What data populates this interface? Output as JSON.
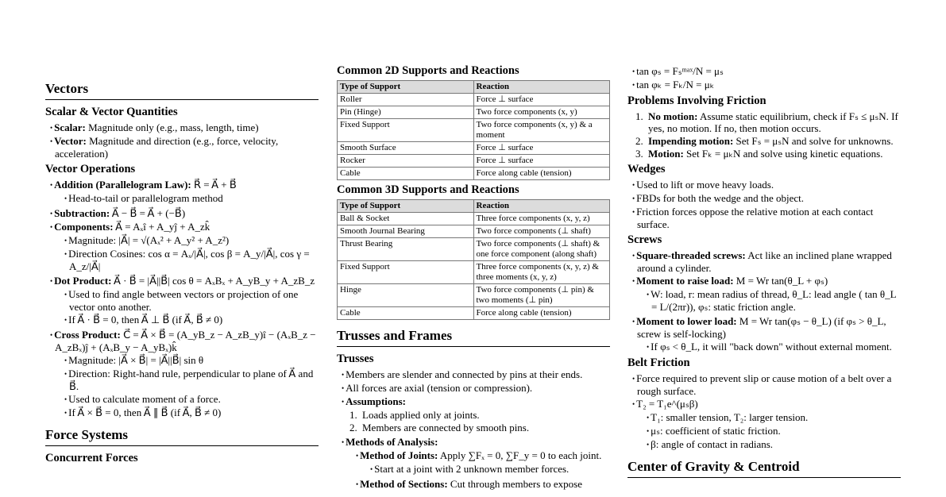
{
  "columns": [
    [
      {
        "type": "h2",
        "text": "Vectors"
      },
      {
        "type": "h3",
        "text": "Scalar & Vector Quantities"
      },
      {
        "type": "ul",
        "items": [
          {
            "b": "Scalar:",
            "t": " Magnitude only (e.g., mass, length, time)"
          },
          {
            "b": "Vector:",
            "t": " Magnitude and direction (e.g., force, velocity, acceleration)"
          }
        ]
      },
      {
        "type": "h3",
        "text": "Vector Operations"
      },
      {
        "type": "ul",
        "items": [
          {
            "b": "Addition (Parallelogram Law):",
            "t": " R⃗ = A⃗ + B⃗",
            "sub": [
              {
                "t": "Head-to-tail or parallelogram method"
              }
            ]
          },
          {
            "b": "Subtraction:",
            "t": " A⃗ − B⃗ = A⃗ + (−B⃗)"
          },
          {
            "b": "Components:",
            "t": " A⃗ = Aₓî + A_yĵ + A_zk̂",
            "sub": [
              {
                "t": "Magnitude: |A⃗| = √(Aₓ² + A_y² + A_z²)"
              },
              {
                "t": "Direction Cosines: cos α = Aₓ/|A⃗|, cos β = A_y/|A⃗|, cos γ = A_z/|A⃗|"
              }
            ]
          },
          {
            "b": "Dot Product:",
            "t": " A⃗ · B⃗ = |A⃗||B⃗| cos θ = AₓBₓ + A_yB_y + A_zB_z",
            "sub": [
              {
                "t": "Used to find angle between vectors or projection of one vector onto another."
              },
              {
                "t": "If A⃗ · B⃗ = 0, then A⃗ ⊥ B⃗ (if A⃗, B⃗ ≠ 0)"
              }
            ]
          },
          {
            "b": "Cross Product:",
            "t": " C⃗ = A⃗ × B⃗ = (A_yB_z − A_zB_y)î − (AₓB_z − A_zBₓ)ĵ + (AₓB_y − A_yBₓ)k̂",
            "sub": [
              {
                "t": "Magnitude: |A⃗ × B⃗| = |A⃗||B⃗| sin θ"
              },
              {
                "t": "Direction: Right-hand rule, perpendicular to plane of A⃗ and B⃗."
              },
              {
                "t": "Used to calculate moment of a force."
              },
              {
                "t": "If A⃗ × B⃗ = 0, then A⃗ ∥ B⃗ (if A⃗, B⃗ ≠ 0)"
              }
            ]
          }
        ]
      },
      {
        "type": "h2",
        "text": "Force Systems"
      },
      {
        "type": "h3",
        "text": "Concurrent Forces"
      }
    ],
    [
      {
        "type": "h3",
        "text": "Common 2D Supports and Reactions"
      },
      {
        "type": "table",
        "headers": [
          "Type of Support",
          "Reaction"
        ],
        "rows": [
          [
            "Roller",
            "Force ⊥ surface"
          ],
          [
            "Pin (Hinge)",
            "Two force components (x, y)"
          ],
          [
            "Fixed Support",
            "Two force components (x, y) & a moment"
          ],
          [
            "Smooth Surface",
            "Force ⊥ surface"
          ],
          [
            "Rocker",
            "Force ⊥ surface"
          ],
          [
            "Cable",
            "Force along cable (tension)"
          ]
        ]
      },
      {
        "type": "h3",
        "text": "Common 3D Supports and Reactions"
      },
      {
        "type": "table",
        "headers": [
          "Type of Support",
          "Reaction"
        ],
        "rows": [
          [
            "Ball & Socket",
            "Three force components (x, y, z)"
          ],
          [
            "Smooth Journal Bearing",
            "Two force components (⊥ shaft)"
          ],
          [
            "Thrust Bearing",
            "Two force components (⊥ shaft) & one force component (along shaft)"
          ],
          [
            "Fixed Support",
            "Three force components (x, y, z) & three moments (x, y, z)"
          ],
          [
            "Hinge",
            "Two force components (⊥ pin) & two moments (⊥ pin)"
          ],
          [
            "Cable",
            "Force along cable (tension)"
          ]
        ]
      },
      {
        "type": "h2",
        "text": "Trusses and Frames"
      },
      {
        "type": "h3",
        "text": "Trusses"
      },
      {
        "type": "ul",
        "items": [
          {
            "t": "Members are slender and connected by pins at their ends."
          },
          {
            "t": "All forces are axial (tension or compression)."
          },
          {
            "b": "Assumptions:",
            "t": "",
            "ol": [
              {
                "t": "Loads applied only at joints."
              },
              {
                "t": "Members are connected by smooth pins."
              }
            ]
          },
          {
            "b": "Methods of Analysis:",
            "t": "",
            "sub": [
              {
                "b": "Method of Joints:",
                "t": " Apply ∑Fₓ = 0, ∑F_y = 0 to each joint.",
                "sub": [
                  {
                    "t": "Start at a joint with 2 unknown member forces."
                  }
                ]
              },
              {
                "b": "Method of Sections:",
                "t": " Cut through members to expose"
              }
            ]
          }
        ]
      }
    ],
    [
      {
        "type": "ul",
        "items": [
          {
            "t": "tan φₛ = Fₛᵐᵃˣ/N = μₛ"
          },
          {
            "t": "tan φₖ = Fₖ/N = μₖ"
          }
        ]
      },
      {
        "type": "h3",
        "text": "Problems Involving Friction"
      },
      {
        "type": "ol",
        "items": [
          {
            "b": "No motion:",
            "t": " Assume static equilibrium, check if Fₛ ≤ μₛN. If yes, no motion. If no, then motion occurs."
          },
          {
            "b": "Impending motion:",
            "t": " Set Fₛ = μₛN and solve for unknowns."
          },
          {
            "b": "Motion:",
            "t": " Set Fₖ = μₖN and solve using kinetic equations."
          }
        ]
      },
      {
        "type": "h3",
        "text": "Wedges"
      },
      {
        "type": "ul",
        "items": [
          {
            "t": "Used to lift or move heavy loads."
          },
          {
            "t": "FBDs for both the wedge and the object."
          },
          {
            "t": "Friction forces oppose the relative motion at each contact surface."
          }
        ]
      },
      {
        "type": "h3",
        "text": "Screws"
      },
      {
        "type": "ul",
        "items": [
          {
            "b": "Square-threaded screws:",
            "t": " Act like an inclined plane wrapped around a cylinder."
          },
          {
            "b": "Moment to raise load:",
            "t": " M = Wr tan(θ_L + φₛ)",
            "sub": [
              {
                "t": "W: load, r: mean radius of thread, θ_L: lead angle ( tan θ_L = L/(2πr)), φₛ: static friction angle."
              }
            ]
          },
          {
            "b": "Moment to lower load:",
            "t": " M = Wr tan(φₛ − θ_L) (if φₛ > θ_L, screw is self-locking)",
            "sub": [
              {
                "t": "If φₛ < θ_L, it will \"back down\" without external moment."
              }
            ]
          }
        ]
      },
      {
        "type": "h3",
        "text": "Belt Friction"
      },
      {
        "type": "ul",
        "items": [
          {
            "t": "Force required to prevent slip or cause motion of a belt over a rough surface."
          },
          {
            "t": "T₂ = T₁e^(μₛβ)",
            "sub": [
              {
                "t": "T₁: smaller tension, T₂: larger tension."
              },
              {
                "t": "μₛ: coefficient of static friction."
              },
              {
                "t": "β: angle of contact in radians."
              }
            ]
          }
        ]
      },
      {
        "type": "h2",
        "text": "Center of Gravity & Centroid"
      }
    ]
  ]
}
